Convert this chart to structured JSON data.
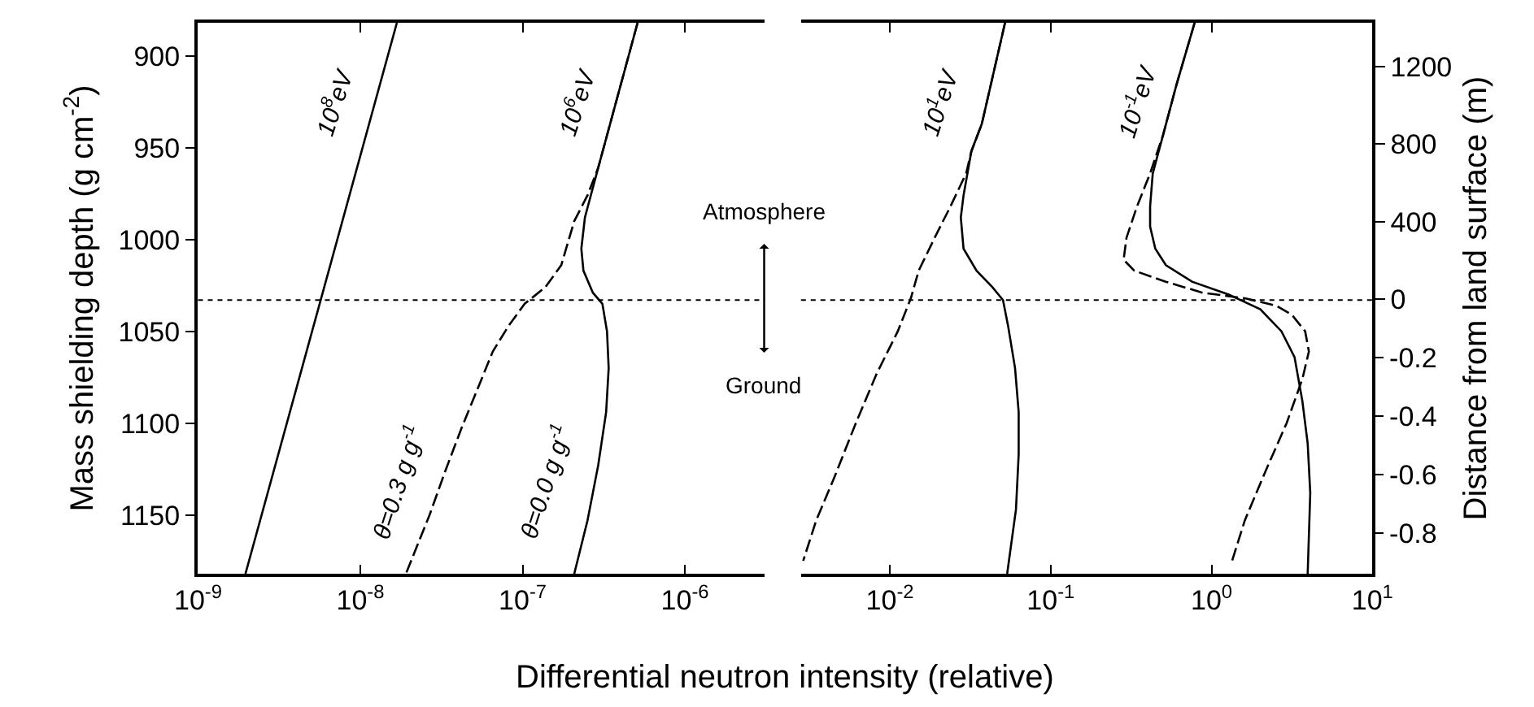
{
  "chart_data": [
    {
      "type": "line",
      "xlabel": "Differential neutron intensity (relative)",
      "ylabel": "Mass shielding depth (g cm$^{-2}$)",
      "xlim": [
        1e-09,
        3.1e-06
      ],
      "xticks": [
        {
          "value": 1e-09,
          "label": "10$^{-9}$"
        },
        {
          "value": 1e-08,
          "label": "10$^{-8}$"
        },
        {
          "value": 1e-07,
          "label": "10$^{-7}$"
        },
        {
          "value": 1e-06,
          "label": "10$^{-6}$"
        }
      ],
      "ylim": [
        1182,
        882
      ],
      "yticks": [
        900,
        950,
        1000,
        1050,
        1100,
        1150
      ],
      "log": "x",
      "ref_lines": [
        {
          "axis": "y",
          "value": 1033,
          "line_style": "dotted",
          "color": "#000000"
        }
      ],
      "series": [
        {
          "color": "#000000",
          "line_style": "solid",
          "x": [
            1.68e-08,
            1.96e-09
          ],
          "values": [
            882,
            1182
          ]
        },
        {
          "color": "#000000",
          "line_style": "solid",
          "x": [
            5.11e-07,
            2.92e-07,
            2.42e-07,
            2.3e-07,
            2.37e-07,
            2.71e-07,
            3.1e-07,
            3.31e-07,
            3.39e-07,
            3.27e-07,
            2.92e-07,
            2.51e-07,
            2.08e-07
          ],
          "values": [
            882,
            961,
            988,
            1005,
            1017,
            1029,
            1035,
            1050,
            1070,
            1094,
            1123,
            1153,
            1182
          ]
        },
        {
          "color": "#000000",
          "line_style": "dashed",
          "x": [
            5.11e-07,
            2.92e-07,
            2.51e-07,
            2.08e-07,
            1.73e-07,
            1.38e-07,
            1.03e-07,
            8.2e-08,
            6.55e-08,
            5.24e-08,
            4.19e-08,
            3.34e-08,
            2.67e-08,
            1.91e-08
          ],
          "values": [
            882,
            961,
            976,
            990,
            1014,
            1026,
            1035,
            1047,
            1061,
            1082,
            1103,
            1126,
            1150,
            1182
          ]
        }
      ],
      "annotations": [
        "10$^{8}$eV",
        "10$^{6}$eV",
        "θ=0.3 g g$^{-1}$",
        "θ=0.0 g g$^{-1}$",
        "Atmosphere",
        "Ground"
      ]
    },
    {
      "type": "line",
      "xlim": [
        0.0028,
        10
      ],
      "xticks": [
        {
          "value": 0.01,
          "label": "10$^{-2}$"
        },
        {
          "value": 0.1,
          "label": "10$^{-1}$"
        },
        {
          "value": 1,
          "label": "10$^{0}$"
        },
        {
          "value": 10,
          "label": "10$^{1}$"
        }
      ],
      "ylim": [
        1182,
        882
      ],
      "tick_labels": "x",
      "log": "x",
      "y2label": "Distance from land surface (m)",
      "y2lim": [
        -1418,
        1427
      ],
      "y2ticks": [
        {
          "value": 0,
          "label": "0"
        },
        {
          "value": 400,
          "label": "400"
        },
        {
          "value": 800,
          "label": "800"
        },
        {
          "value": 1200,
          "label": "1200"
        }
      ],
      "y3lim": [
        -0.939,
        0.944
      ],
      "y3ticks": [
        -0.2,
        -0.4,
        -0.6,
        -0.8
      ],
      "ref_lines": [
        {
          "axis": "y",
          "value": 1033,
          "line_style": "dotted",
          "color": "#000000"
        }
      ],
      "series": [
        {
          "color": "#000000",
          "line_style": "solid",
          "x": [
            0.052,
            0.0373,
            0.0321,
            0.0287,
            0.0276,
            0.0287,
            0.0346,
            0.0434,
            0.0505,
            0.0543,
            0.06,
            0.0632,
            0.0632,
            0.0608,
            0.0536
          ],
          "values": [
            882,
            937,
            952,
            976,
            988,
            1005,
            1017,
            1026,
            1033,
            1047,
            1070,
            1094,
            1117,
            1147,
            1182
          ]
        },
        {
          "color": "#000000",
          "line_style": "dashed",
          "x": [
            0.052,
            0.0373,
            0.0321,
            0.0298,
            0.0238,
            0.019,
            0.0151,
            0.0135,
            0.0112,
            0.00828,
            0.00614,
            0.00454,
            0.00348,
            0.00289
          ],
          "values": [
            882,
            937,
            952,
            964,
            982,
            999,
            1017,
            1032,
            1050,
            1073,
            1100,
            1129,
            1153,
            1175
          ]
        },
        {
          "color": "#000000",
          "line_style": "solid",
          "x": [
            0.785,
            0.604,
            0.5,
            0.431,
            0.415,
            0.415,
            0.447,
            0.52,
            0.757,
            1.28,
            2.01,
            2.72,
            3.28,
            3.67,
            3.96,
            4.11,
            3.96
          ],
          "values": [
            882,
            916,
            943,
            964,
            982,
            993,
            1005,
            1014,
            1023,
            1030,
            1038,
            1050,
            1064,
            1088,
            1111,
            1138,
            1182
          ]
        },
        {
          "color": "#000000",
          "line_style": "dashed",
          "x": [
            0.785,
            0.604,
            0.5,
            0.415,
            0.344,
            0.296,
            0.284,
            0.331,
            0.52,
            0.879,
            1.61,
            2.52,
            3.16,
            3.82,
            4.03,
            3.67,
            2.93,
            2.17,
            1.61,
            1.33
          ],
          "values": [
            882,
            916,
            943,
            964,
            982,
            999,
            1011,
            1017,
            1023,
            1029,
            1032,
            1036,
            1041,
            1050,
            1061,
            1076,
            1100,
            1126,
            1153,
            1176
          ]
        }
      ],
      "annotations": [
        "10$^{1}$eV",
        "10$^{-1}$eV"
      ]
    }
  ]
}
